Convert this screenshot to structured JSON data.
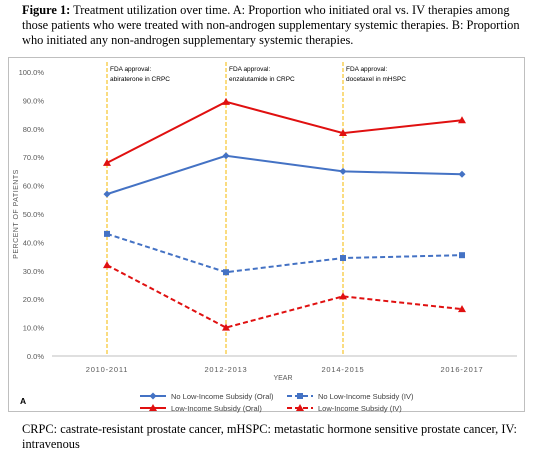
{
  "caption": {
    "lead": "Figure 1:",
    "text": " Treatment utilization over time. A: Proportion who initiated oral vs. IV therapies among those patients who were treated with non-androgen supplementary systemic therapies. B: Proportion who initiated any non-androgen supplementary systemic therapies."
  },
  "footnote": "CRPC: castrate-resistant prostate cancer, mHSPC: metastatic hormone sensitive prostate cancer, IV: intravenous",
  "chart_data": {
    "type": "line",
    "panel_label": "A",
    "categories": [
      "2010-2011",
      "2012-2013",
      "2014-2015",
      "2016-2017"
    ],
    "xlabel": "YEAR",
    "ylabel": "PERCENT OF PATIENTS",
    "ylim": [
      0,
      100
    ],
    "yticks": [
      "0.0%",
      "10.0%",
      "20.0%",
      "30.0%",
      "40.0%",
      "50.0%",
      "60.0%",
      "70.0%",
      "80.0%",
      "90.0%",
      "100.0%"
    ],
    "grid": false,
    "legend_position": "bottom",
    "series": [
      {
        "name": "No Low-Income Subsidy (Oral)",
        "values": [
          57,
          70.5,
          65,
          64
        ],
        "color": "#4472c4",
        "dash": false,
        "marker": "diamond"
      },
      {
        "name": "No Low-Income Subsidy (IV)",
        "values": [
          43,
          29.5,
          34.5,
          35.5
        ],
        "color": "#4472c4",
        "dash": true,
        "marker": "square"
      },
      {
        "name": "Low-Income Subsidy (Oral)",
        "values": [
          68,
          89.5,
          78.5,
          83
        ],
        "color": "#e01010",
        "dash": false,
        "marker": "triangle"
      },
      {
        "name": "Low-Income Subsidy (IV)",
        "values": [
          32,
          10,
          21,
          16.5
        ],
        "color": "#e01010",
        "dash": true,
        "marker": "triangle"
      }
    ],
    "annotations": [
      {
        "category_index": 0,
        "line1": "FDA approval:",
        "line2": "abiraterone in CRPC"
      },
      {
        "category_index": 1,
        "line1": "FDA approval:",
        "line2": "enzalutamide in CRPC"
      },
      {
        "category_index": 2,
        "line1": "FDA approval:",
        "line2": "docetaxel in mHSPC"
      }
    ],
    "annotation_line_color": "#f5b800"
  }
}
